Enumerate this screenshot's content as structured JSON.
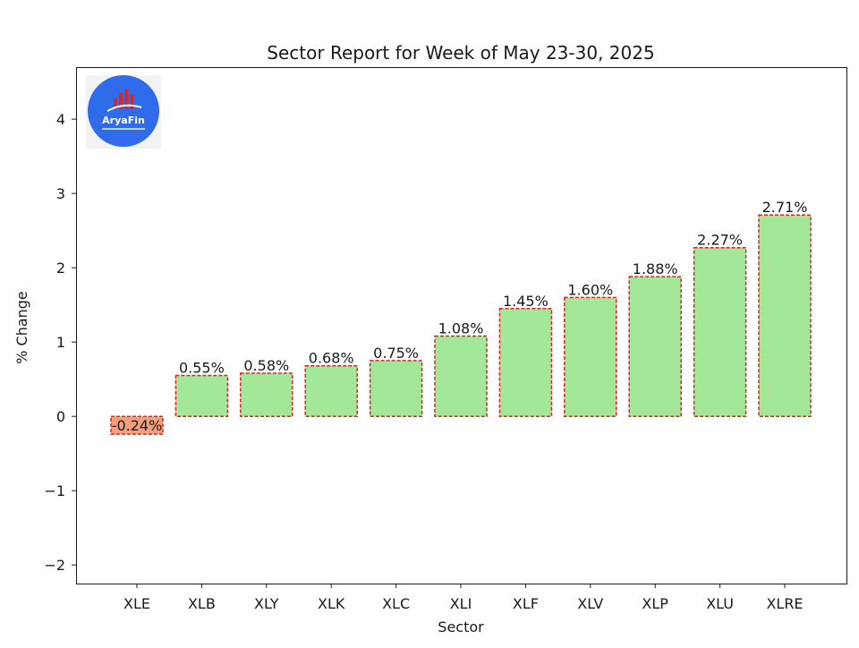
{
  "chart_data": {
    "type": "bar",
    "title": "Sector Report for Week of May 23-30, 2025",
    "xlabel": "Sector",
    "ylabel": "% Change",
    "categories": [
      "XLE",
      "XLB",
      "XLY",
      "XLK",
      "XLC",
      "XLI",
      "XLF",
      "XLV",
      "XLP",
      "XLU",
      "XLRE"
    ],
    "values": [
      -0.24,
      0.55,
      0.58,
      0.68,
      0.75,
      1.08,
      1.45,
      1.6,
      1.88,
      2.27,
      2.71
    ],
    "value_labels": [
      "-0.24%",
      "0.55%",
      "0.58%",
      "0.68%",
      "0.75%",
      "1.08%",
      "1.45%",
      "1.60%",
      "1.88%",
      "2.27%",
      "2.71%"
    ],
    "yticks": [
      -2,
      -1,
      0,
      1,
      2,
      3,
      4
    ],
    "ytick_labels": [
      "−2",
      "−1",
      "0",
      "1",
      "2",
      "3",
      "4"
    ],
    "ylim": [
      -2.25,
      4.7
    ],
    "grid": false,
    "colors": {
      "positive": "#a3e899",
      "negative": "#f4a07c",
      "edge": "#d62728"
    }
  },
  "logo": {
    "text": "AryaFin",
    "background": "#f2f2f2",
    "circle_color": "#2f6bea",
    "bar_color": "#cf2b2b"
  }
}
